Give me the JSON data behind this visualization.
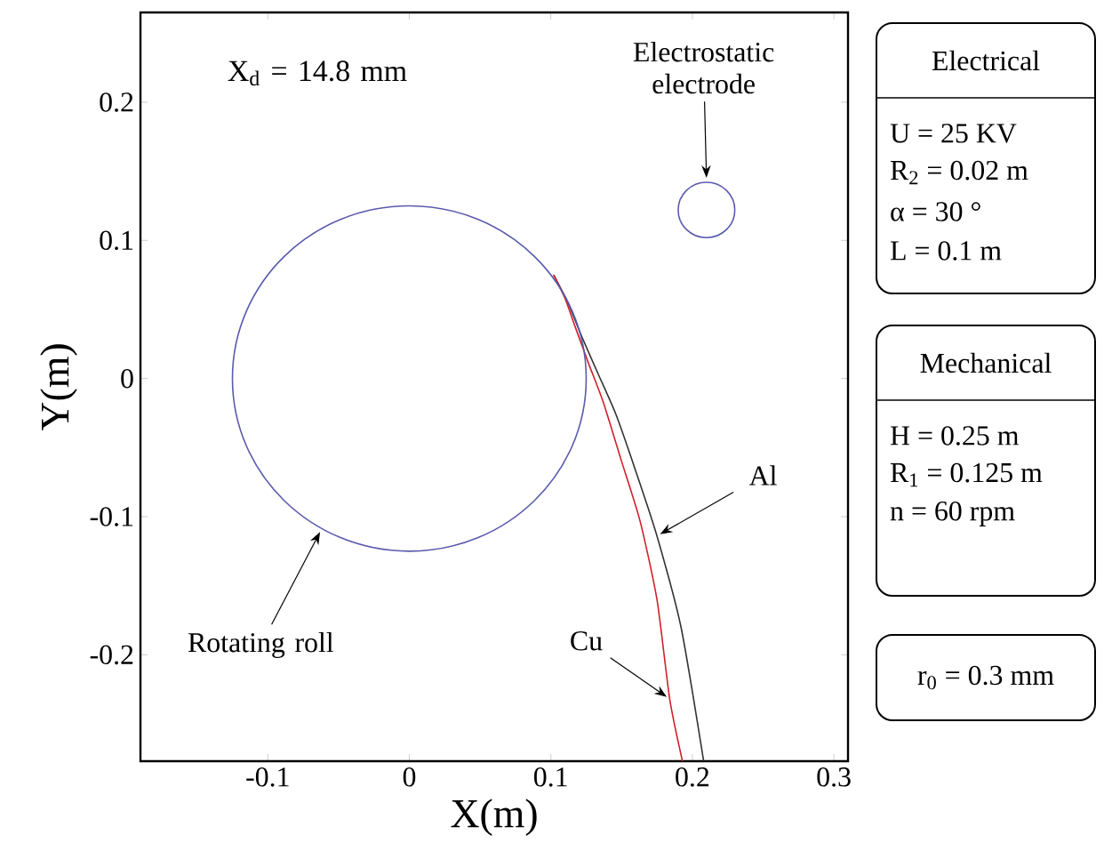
{
  "chart_data": [
    {
      "type": "line",
      "xlabel": "X(m)",
      "ylabel": "Y(m)",
      "xlim": [
        -0.19,
        0.31
      ],
      "ylim": [
        -0.277,
        0.265
      ],
      "xticks": [
        -0.1,
        0,
        0.1,
        0.2,
        0.3
      ],
      "yticks": [
        -0.2,
        -0.1,
        0,
        0.1,
        0.2
      ],
      "annotations": [
        "X$_{d}$ = 14.8 mm",
        "Rotating roll",
        "Electrostatic electrode"
      ],
      "series": [
        {
          "name": "Al",
          "color": "#333333",
          "x": [
            0.102,
            0.112,
            0.122,
            0.134,
            0.146,
            0.161,
            0.175,
            0.192,
            0.208
          ],
          "values": [
            0.075,
            0.055,
            0.03,
            0.002,
            -0.026,
            -0.07,
            -0.114,
            -0.18,
            -0.277
          ]
        },
        {
          "name": "Cu",
          "color": "#d0202a",
          "x": [
            0.102,
            0.11,
            0.117,
            0.127,
            0.137,
            0.15,
            0.163,
            0.175,
            0.184,
            0.193
          ],
          "values": [
            0.075,
            0.058,
            0.038,
            0.01,
            -0.017,
            -0.06,
            -0.103,
            -0.16,
            -0.232,
            -0.277
          ]
        }
      ]
    },
    {
      "type": "other",
      "annotations": [
        "Electrical",
        "U = 25 KV",
        "R$_{2}$ = 0.02 m",
        "α = 30 °",
        "L = 0.1 m",
        "Mechanical",
        "H = 0.25 m",
        "R$_{1}$ = 0.125 m",
        "n = 60 rpm",
        "r$_{0}$ = 0.3 mm"
      ]
    }
  ]
}
